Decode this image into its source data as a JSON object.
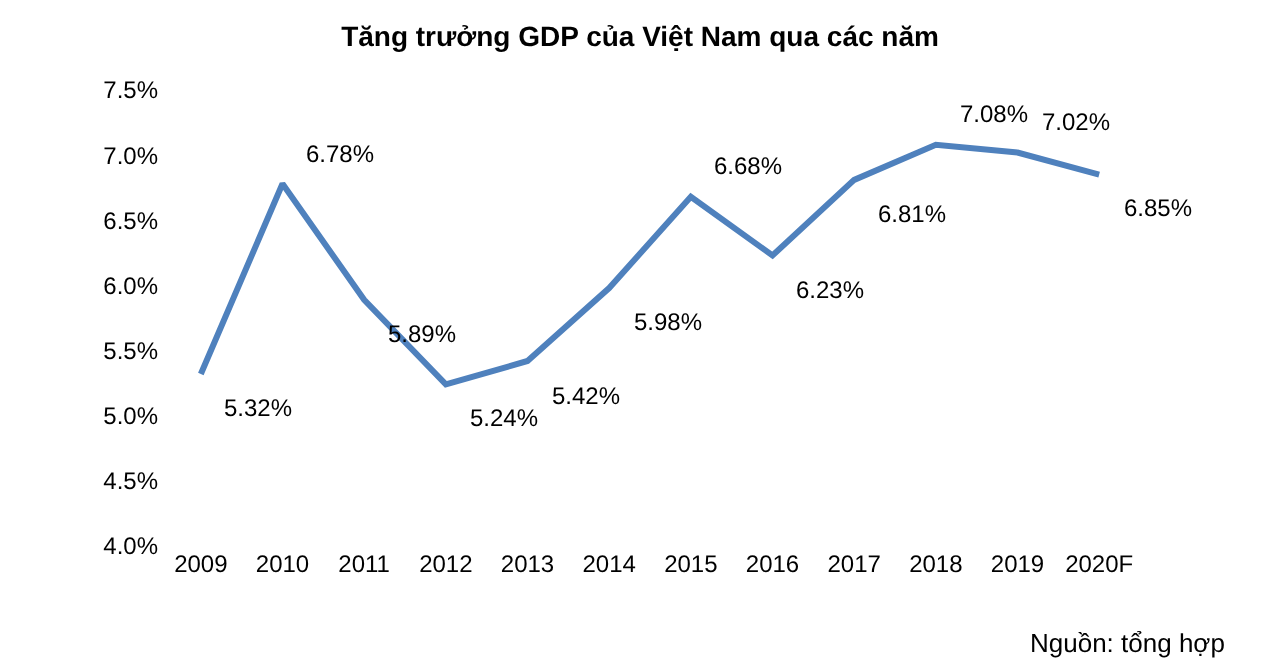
{
  "chart_data": {
    "type": "line",
    "title": "Tăng trưởng GDP của Việt Nam qua các năm",
    "categories": [
      "2009",
      "2010",
      "2011",
      "2012",
      "2013",
      "2014",
      "2015",
      "2016",
      "2017",
      "2018",
      "2019",
      "2020F"
    ],
    "series": [
      {
        "color": "#4f81bd",
        "values": [
          5.32,
          6.78,
          5.89,
          5.24,
          5.42,
          5.98,
          6.68,
          6.23,
          6.81,
          7.08,
          7.02,
          6.85
        ],
        "value_labels": [
          "5.32%",
          "6.78%",
          "5.89%",
          "5.24%",
          "5.42%",
          "5.98%",
          "6.68%",
          "6.23%",
          "6.81%",
          "7.08%",
          "7.02%",
          "6.85%"
        ]
      }
    ],
    "ylim": [
      4.0,
      7.5
    ],
    "yticks": [
      {
        "value": 4.0,
        "label": "4.0%"
      },
      {
        "value": 4.5,
        "label": "4.5%"
      },
      {
        "value": 5.0,
        "label": "5.0%"
      },
      {
        "value": 5.5,
        "label": "5.5%"
      },
      {
        "value": 6.0,
        "label": "6.0%"
      },
      {
        "value": 6.5,
        "label": "6.5%"
      },
      {
        "value": 7.0,
        "label": "7.0%"
      },
      {
        "value": 7.5,
        "label": "7.5%"
      }
    ],
    "legend": false,
    "marker": "none",
    "line_style": "solid",
    "annotations": [
      "Nguồn: tổng hợp"
    ]
  }
}
